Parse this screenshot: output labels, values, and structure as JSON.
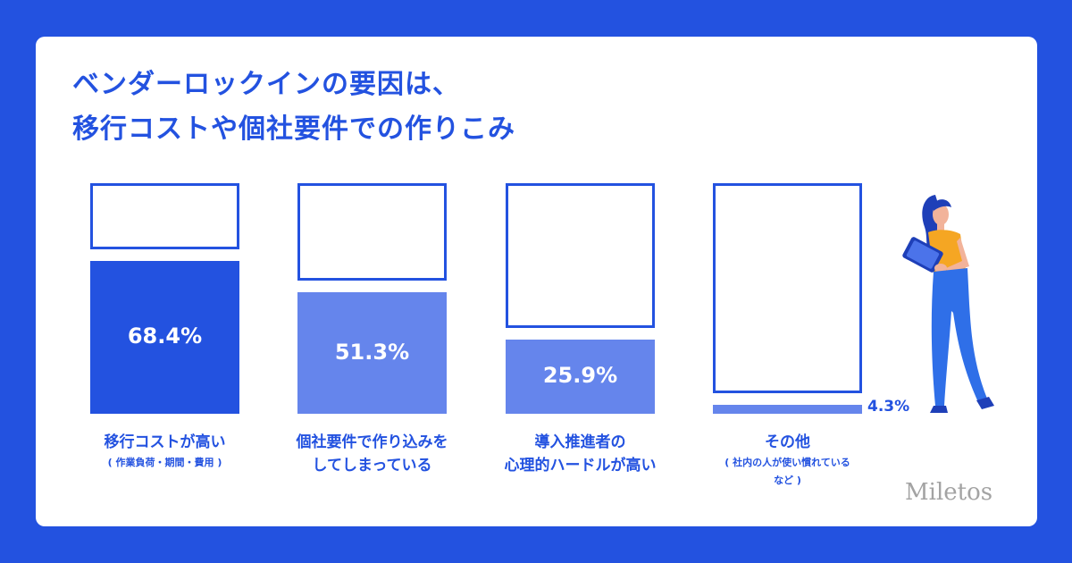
{
  "title": {
    "line1": "ベンダーロックインの要因は、",
    "line2": "移行コストや個社要件での作りこみ"
  },
  "chart_data": {
    "type": "bar",
    "unit": "%",
    "ylim": [
      0,
      100
    ],
    "bars": [
      {
        "value": 68.4,
        "label": "68.4%",
        "label_lines": [
          "移行コストが高い"
        ],
        "sub_lines": [
          "( 作業負荷・期間・費用 )"
        ],
        "color": "#2352e0"
      },
      {
        "value": 51.3,
        "label": "51.3%",
        "label_lines": [
          "個社要件で作り込みを",
          "してしまっている"
        ],
        "sub_lines": [],
        "color": "#6585ec"
      },
      {
        "value": 25.9,
        "label": "25.9%",
        "label_lines": [
          "導入推進者の",
          "心理的ハードルが高い"
        ],
        "sub_lines": [],
        "color": "#6585ec"
      },
      {
        "value": 4.3,
        "label": "4.3%",
        "label_lines": [
          "その他"
        ],
        "sub_lines": [
          "( 社内の人が使い慣れている",
          "など )"
        ],
        "color": "#6585ec"
      }
    ]
  },
  "colors": {
    "background": "#2352e0",
    "card": "#ffffff",
    "accent": "#2352e0",
    "secondary_fill": "#6585ec"
  },
  "illustration": {
    "icon": "woman-with-tablet-icon"
  },
  "logo": {
    "text": "Miletos"
  }
}
